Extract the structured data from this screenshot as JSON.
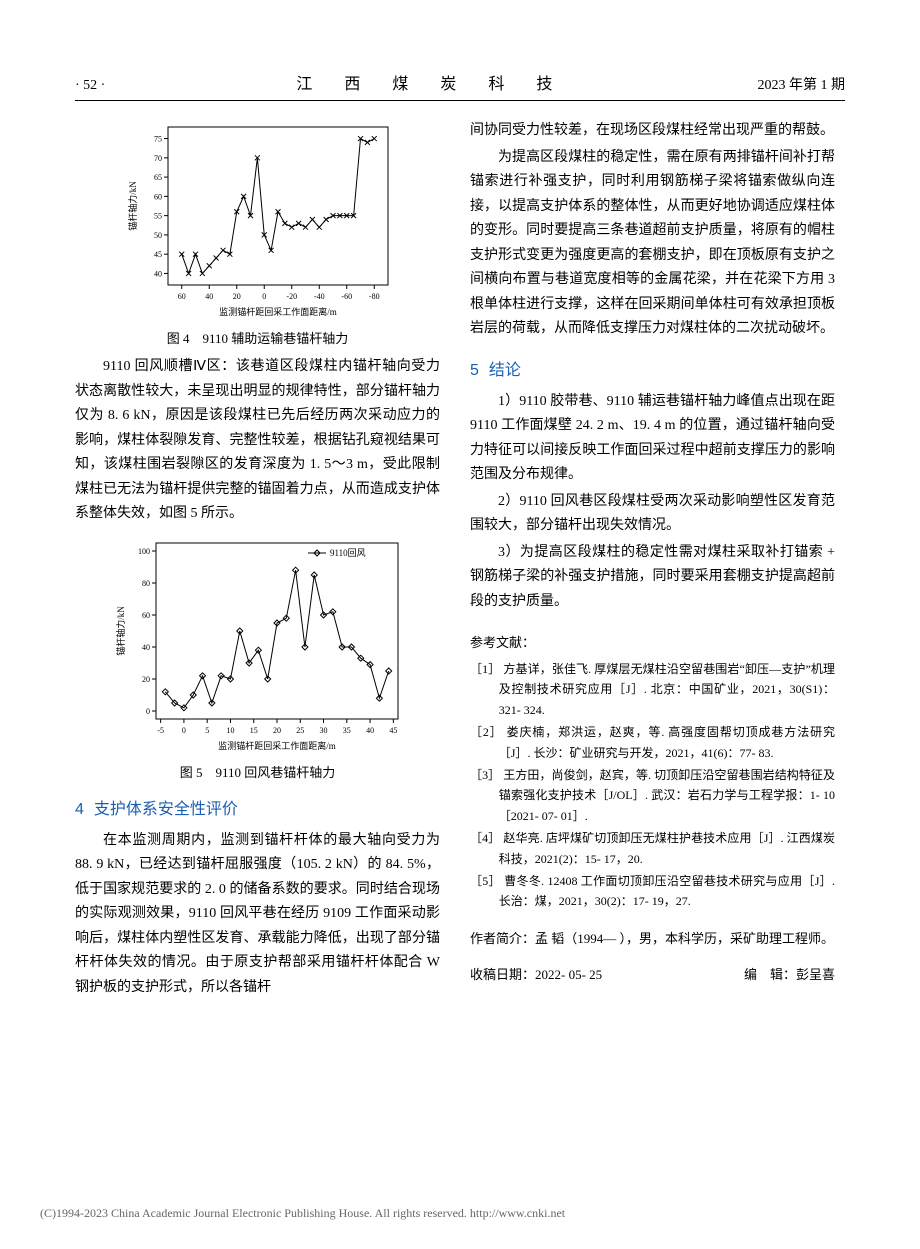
{
  "header": {
    "page_num": "· 52 ·",
    "journal": "江 西 煤 炭 科 技",
    "issue": "2023 年第 1 期"
  },
  "fig4": {
    "type": "line-scatter",
    "caption": "图 4　9110 辅助运输巷锚杆轴力",
    "xlabel": "监测锚杆距回采工作面距离/m",
    "ylabel": "锚杆轴力/kN",
    "xticks": [
      60,
      40,
      20,
      0,
      -20,
      -40,
      -60,
      -80
    ],
    "yticks": [
      40,
      45,
      50,
      55,
      60,
      65,
      70,
      75
    ],
    "xlim": [
      70,
      -90
    ],
    "ylim": [
      37,
      78
    ],
    "x": [
      60,
      55,
      50,
      45,
      40,
      35,
      30,
      25,
      20,
      15,
      10,
      5,
      0,
      -5,
      -10,
      -15,
      -20,
      -25,
      -30,
      -35,
      -40,
      -45,
      -50,
      -55,
      -60,
      -65,
      -70,
      -75,
      -80
    ],
    "y": [
      45,
      40,
      45,
      40,
      42,
      44,
      46,
      45,
      56,
      60,
      55,
      70,
      50,
      46,
      56,
      53,
      52,
      53,
      52,
      54,
      52,
      54,
      55,
      55,
      55,
      55,
      75,
      74,
      75
    ],
    "line_color": "#000000",
    "marker_color": "#000000",
    "marker_style": "x",
    "background_color": "#ffffff",
    "axis_color": "#000000",
    "label_fontsize": 8
  },
  "fig5": {
    "type": "line-scatter",
    "caption": "图 5　9110 回风巷锚杆轴力",
    "xlabel": "监测锚杆距回采工作面距离/m",
    "ylabel": "锚杆轴力/kN",
    "legend": "9110回风",
    "xticks": [
      -5,
      0,
      5,
      10,
      15,
      20,
      25,
      30,
      35,
      40,
      45
    ],
    "yticks": [
      0,
      20,
      40,
      60,
      80,
      100
    ],
    "xlim": [
      -6,
      46
    ],
    "ylim": [
      -5,
      105
    ],
    "x": [
      -4,
      -2,
      0,
      2,
      4,
      6,
      8,
      10,
      12,
      14,
      16,
      18,
      20,
      22,
      24,
      26,
      28,
      30,
      32,
      34,
      36,
      38,
      40,
      42,
      44
    ],
    "y": [
      12,
      5,
      2,
      10,
      22,
      5,
      22,
      20,
      50,
      30,
      38,
      20,
      55,
      58,
      88,
      40,
      85,
      60,
      62,
      40,
      40,
      33,
      29,
      8,
      25
    ],
    "line_color": "#000000",
    "marker_color": "#000000",
    "marker_style": "diamond",
    "background_color": "#ffffff",
    "axis_color": "#000000",
    "label_fontsize": 8
  },
  "left": {
    "para1": "9110 回风顺槽Ⅳ区：该巷道区段煤柱内锚杆轴向受力状态离散性较大，未呈现出明显的规律特性，部分锚杆轴力仅为 8. 6 kN，原因是该段煤柱已先后经历两次采动应力的影响，煤柱体裂隙发育、完整性较差，根据钻孔窥视结果可知，该煤柱围岩裂隙区的发育深度为 1. 5～3 m，受此限制煤柱已无法为锚杆提供完整的锚固着力点，从而造成支护体系整体失效，如图 5 所示。",
    "sec4_num": "4",
    "sec4_title": "支护体系安全性评价",
    "para2": "在本监测周期内，监测到锚杆杆体的最大轴向受力为 88. 9 kN，已经达到锚杆屈服强度（105. 2 kN）的 84. 5%，低于国家规范要求的 2. 0 的储备系数的要求。同时结合现场的实际观测效果，9110 回风平巷在经历 9109 工作面采动影响后，煤柱体内塑性区发育、承载能力降低，出现了部分锚杆杆体失效的情况。由于原支护帮部采用锚杆杆体配合 W 钢护板的支护形式，所以各锚杆"
  },
  "right": {
    "para1": "间协同受力性较差，在现场区段煤柱经常出现严重的帮鼓。",
    "para2": "为提高区段煤柱的稳定性，需在原有两排锚杆间补打帮锚索进行补强支护，同时利用钢筋梯子梁将锚索做纵向连接，以提高支护体系的整体性，从而更好地协调适应煤柱体的变形。同时要提高三条巷道超前支护质量，将原有的帽柱支护形式变更为强度更高的套棚支护，即在顶板原有支护之间横向布置与巷道宽度相等的金属花梁，并在花梁下方用 3 根单体柱进行支撑，这样在回采期间单体柱可有效承担顶板岩层的荷载，从而降低支撑压力对煤柱体的二次扰动破坏。",
    "sec5_num": "5",
    "sec5_title": "结论",
    "para3": "1）9110 胶带巷、9110 辅运巷锚杆轴力峰值点出现在距 9110 工作面煤壁 24. 2 m、19. 4 m 的位置，通过锚杆轴向受力特征可以间接反映工作面回采过程中超前支撑压力的影响范围及分布规律。",
    "para4": "2）9110 回风巷区段煤柱受两次采动影响塑性区发育范围较大，部分锚杆出现失效情况。",
    "para5": "3）为提高区段煤柱的稳定性需对煤柱采取补打锚索 + 钢筋梯子梁的补强支护措施，同时要采用套棚支护提高超前段的支护质量。",
    "refs_title": "参考文献：",
    "refs": [
      "［1］ 方基详，张佳飞. 厚煤层无煤柱沿空留巷围岩“卸压—支护”机理及控制技术研究应用［J］. 北京：中国矿业，2021，30(S1)：321- 324.",
      "［2］ 娄庆楠，郑洪运，赵爽，等. 高强度固帮切顶成巷方法研究［J］. 长沙：矿业研究与开发，2021，41(6)：77- 83.",
      "［3］ 王方田，尚俊剑，赵宾，等. 切顶卸压沿空留巷围岩结构特征及锚索强化支护技术［J/OL］. 武汉：岩石力学与工程学报：1- 10［2021- 07- 01］.",
      "［4］ 赵华亮. 店坪煤矿切顶卸压无煤柱护巷技术应用［J］. 江西煤炭科技，2021(2)：15- 17，20.",
      "［5］ 曹冬冬. 12408 工作面切顶卸压沿空留巷技术研究与应用［J］. 长治：煤，2021，30(2)：17- 19，27."
    ],
    "author_bio": "作者简介：孟 韬（1994— ），男，本科学历，采矿助理工程师。",
    "received": "收稿日期：2022- 05- 25",
    "editor": "编　辑：彭呈喜"
  },
  "copyright": "(C)1994-2023 China Academic Journal Electronic Publishing House. All rights reserved.    http://www.cnki.net"
}
